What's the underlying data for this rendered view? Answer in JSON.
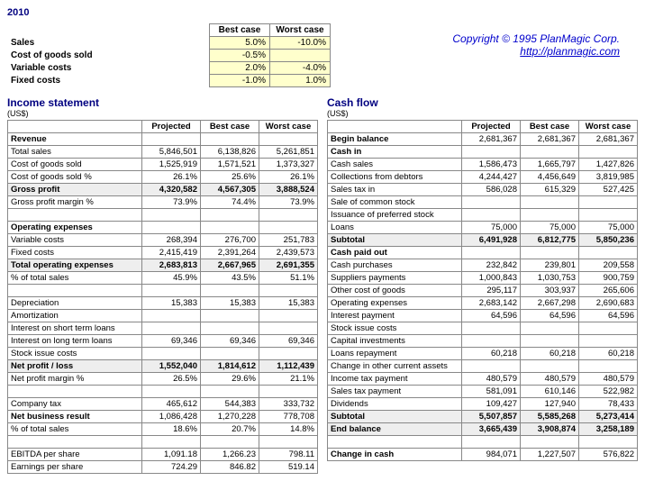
{
  "year": "2010",
  "copyright_line1": "Copyright © 1995 PlanMagic Corp.",
  "copyright_link": "http://planmagic.com",
  "assumptions": {
    "headers": [
      "Best case",
      "Worst case"
    ],
    "rows": [
      {
        "label": "Sales",
        "best": "5.0%",
        "worst": "-10.0%"
      },
      {
        "label": "Cost of goods sold",
        "best": "-0.5%",
        "worst": ""
      },
      {
        "label": "Variable costs",
        "best": "2.0%",
        "worst": "-4.0%"
      },
      {
        "label": "Fixed costs",
        "best": "-1.0%",
        "worst": "1.0%"
      }
    ]
  },
  "income": {
    "title": "Income statement",
    "units": "(US$)",
    "headers": [
      "Projected",
      "Best case",
      "Worst case"
    ],
    "rows": [
      {
        "t": "subhead",
        "label": "Revenue"
      },
      {
        "label": "Total sales",
        "v": [
          "5,846,501",
          "6,138,826",
          "5,261,851"
        ]
      },
      {
        "label": "Cost of goods sold",
        "v": [
          "1,525,919",
          "1,571,521",
          "1,373,327"
        ]
      },
      {
        "label": "Cost of goods sold %",
        "v": [
          "26.1%",
          "25.6%",
          "26.1%"
        ]
      },
      {
        "t": "total",
        "label": "Gross profit",
        "v": [
          "4,320,582",
          "4,567,305",
          "3,888,524"
        ]
      },
      {
        "label": "Gross profit margin %",
        "v": [
          "73.9%",
          "74.4%",
          "73.9%"
        ]
      },
      {
        "t": "spacer"
      },
      {
        "t": "subhead",
        "label": "Operating expenses"
      },
      {
        "label": "Variable costs",
        "v": [
          "268,394",
          "276,700",
          "251,783"
        ]
      },
      {
        "label": "Fixed costs",
        "v": [
          "2,415,419",
          "2,391,264",
          "2,439,573"
        ]
      },
      {
        "t": "total",
        "label": "Total operating expenses",
        "v": [
          "2,683,813",
          "2,667,965",
          "2,691,355"
        ]
      },
      {
        "label": "% of total sales",
        "v": [
          "45.9%",
          "43.5%",
          "51.1%"
        ]
      },
      {
        "t": "spacer"
      },
      {
        "label": "Depreciation",
        "v": [
          "15,383",
          "15,383",
          "15,383"
        ]
      },
      {
        "label": "Amortization",
        "v": [
          "",
          "",
          ""
        ]
      },
      {
        "label": "Interest on short term loans",
        "v": [
          "",
          "",
          ""
        ]
      },
      {
        "label": "Interest on long term loans",
        "v": [
          "69,346",
          "69,346",
          "69,346"
        ]
      },
      {
        "label": "Stock issue costs",
        "v": [
          "",
          "",
          ""
        ]
      },
      {
        "t": "total",
        "label": "Net profit / loss",
        "v": [
          "1,552,040",
          "1,814,612",
          "1,112,439"
        ]
      },
      {
        "label": "Net profit margin %",
        "v": [
          "26.5%",
          "29.6%",
          "21.1%"
        ]
      },
      {
        "t": "spacer"
      },
      {
        "label": "Company tax",
        "v": [
          "465,612",
          "544,383",
          "333,732"
        ]
      },
      {
        "t": "bold",
        "label": "Net business result",
        "v": [
          "1,086,428",
          "1,270,228",
          "778,708"
        ]
      },
      {
        "label": "% of total sales",
        "v": [
          "18.6%",
          "20.7%",
          "14.8%"
        ]
      },
      {
        "t": "spacer"
      },
      {
        "label": "EBITDA per share",
        "v": [
          "1,091.18",
          "1,266.23",
          "798.11"
        ]
      },
      {
        "label": "Earnings per share",
        "v": [
          "724.29",
          "846.82",
          "519.14"
        ]
      }
    ]
  },
  "cashflow": {
    "title": "Cash flow",
    "units": "(US$)",
    "headers": [
      "Projected",
      "Best case",
      "Worst case"
    ],
    "rows": [
      {
        "t": "bold",
        "label": "Begin balance",
        "v": [
          "2,681,367",
          "2,681,367",
          "2,681,367"
        ]
      },
      {
        "t": "subhead",
        "label": "Cash in"
      },
      {
        "label": "Cash sales",
        "v": [
          "1,586,473",
          "1,665,797",
          "1,427,826"
        ]
      },
      {
        "label": "Collections from debtors",
        "v": [
          "4,244,427",
          "4,456,649",
          "3,819,985"
        ]
      },
      {
        "label": "Sales tax in",
        "v": [
          "586,028",
          "615,329",
          "527,425"
        ]
      },
      {
        "label": "Sale of common stock",
        "v": [
          "",
          "",
          ""
        ]
      },
      {
        "label": "Issuance of preferred stock",
        "v": [
          "",
          "",
          ""
        ]
      },
      {
        "label": "Loans",
        "v": [
          "75,000",
          "75,000",
          "75,000"
        ]
      },
      {
        "t": "total",
        "label": "Subtotal",
        "v": [
          "6,491,928",
          "6,812,775",
          "5,850,236"
        ]
      },
      {
        "t": "subhead",
        "label": "Cash paid out"
      },
      {
        "label": "Cash purchases",
        "v": [
          "232,842",
          "239,801",
          "209,558"
        ]
      },
      {
        "label": "Suppliers payments",
        "v": [
          "1,000,843",
          "1,030,753",
          "900,759"
        ]
      },
      {
        "label": "Other cost of goods",
        "v": [
          "295,117",
          "303,937",
          "265,606"
        ]
      },
      {
        "label": "Operating expenses",
        "v": [
          "2,683,142",
          "2,667,298",
          "2,690,683"
        ]
      },
      {
        "label": "Interest payment",
        "v": [
          "64,596",
          "64,596",
          "64,596"
        ]
      },
      {
        "label": "Stock issue costs",
        "v": [
          "",
          "",
          ""
        ]
      },
      {
        "label": "Capital investments",
        "v": [
          "",
          "",
          ""
        ]
      },
      {
        "label": "Loans repayment",
        "v": [
          "60,218",
          "60,218",
          "60,218"
        ]
      },
      {
        "label": "Change in other current assets",
        "v": [
          "",
          "",
          ""
        ]
      },
      {
        "label": "Income tax payment",
        "v": [
          "480,579",
          "480,579",
          "480,579"
        ]
      },
      {
        "label": "Sales tax payment",
        "v": [
          "581,091",
          "610,146",
          "522,982"
        ]
      },
      {
        "label": "Dividends",
        "v": [
          "109,427",
          "127,940",
          "78,433"
        ]
      },
      {
        "t": "total",
        "label": "Subtotal",
        "v": [
          "5,507,857",
          "5,585,268",
          "5,273,414"
        ]
      },
      {
        "t": "total",
        "label": "End balance",
        "v": [
          "3,665,439",
          "3,908,874",
          "3,258,189"
        ]
      },
      {
        "t": "spacer"
      },
      {
        "t": "bold",
        "label": "Change in cash",
        "v": [
          "984,071",
          "1,227,507",
          "576,822"
        ]
      }
    ]
  }
}
